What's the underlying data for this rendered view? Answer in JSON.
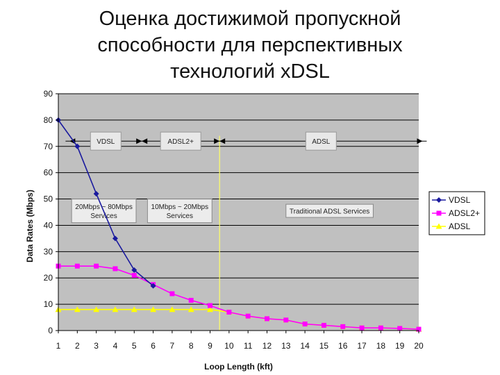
{
  "slide": {
    "title_lines": [
      "Оценка достижимой пропускной",
      "способности для перспективных",
      "технологий xDSL"
    ]
  },
  "chart_data": {
    "type": "line",
    "title": "",
    "xlabel": "Loop Length (kft)",
    "ylabel": "Data Rates (Mbps)",
    "x": [
      1,
      2,
      3,
      4,
      5,
      6,
      7,
      8,
      9,
      10,
      11,
      12,
      13,
      14,
      15,
      16,
      17,
      18,
      19,
      20
    ],
    "xlim": [
      1,
      20
    ],
    "ylim": [
      0,
      90
    ],
    "yticks": [
      0,
      10,
      20,
      30,
      40,
      50,
      60,
      70,
      80,
      90
    ],
    "grid": true,
    "legend_position": "right",
    "plot_bg": "#c0c0c0",
    "series": [
      {
        "name": "VDSL",
        "color": "#1a1a9e",
        "marker": "diamond",
        "values": [
          80,
          70,
          52,
          35,
          23,
          17,
          null,
          null,
          null,
          null,
          null,
          null,
          null,
          null,
          null,
          null,
          null,
          null,
          null,
          null
        ]
      },
      {
        "name": "ADSL2+",
        "color": "#ff00ff",
        "marker": "square",
        "values": [
          24.5,
          24.5,
          24.5,
          23.5,
          21,
          17.5,
          14,
          11.5,
          9.5,
          7,
          5.5,
          4.5,
          4,
          2.5,
          2,
          1.5,
          1,
          1,
          0.8,
          0.5
        ]
      },
      {
        "name": "ADSL",
        "color": "#ffff00",
        "marker": "triangle",
        "values": [
          8,
          8,
          8,
          8,
          8,
          8,
          8,
          8,
          8,
          7,
          5.5,
          4.5,
          4,
          2.5,
          2,
          1.5,
          1,
          1,
          0.8,
          0.5
        ]
      }
    ],
    "reach_ranges": [
      {
        "label": "VDSL",
        "x_start": 1.6,
        "x_end": 5.4
      },
      {
        "label": "ADSL2+",
        "x_start": 5.4,
        "x_end": 9.5
      },
      {
        "label": "ADSL",
        "x_start": 9.5,
        "x_end": 20.2
      }
    ],
    "reach_level": 72,
    "marker_line_x": 9.5,
    "service_boxes": [
      {
        "lines": [
          "20Mbps ~ 80Mbps",
          "Services"
        ],
        "x_start": 1.7,
        "x_end": 5.1,
        "y_top": 50,
        "y_bottom": 41
      },
      {
        "lines": [
          "10Mbps ~ 20Mbps",
          "Services"
        ],
        "x_start": 5.7,
        "x_end": 9.1,
        "y_top": 50,
        "y_bottom": 41
      },
      {
        "lines": [
          "Traditional ADSL Services"
        ],
        "x_start": 13.0,
        "x_end": 17.6,
        "y_top": 48,
        "y_bottom": 43
      }
    ]
  }
}
